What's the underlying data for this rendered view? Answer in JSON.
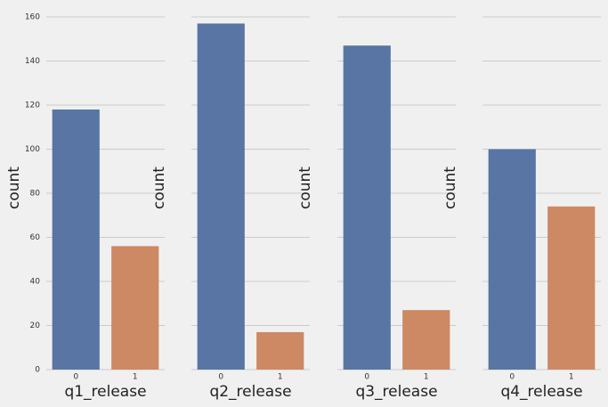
{
  "chart_data": [
    {
      "type": "bar",
      "x_label": "q1_release",
      "y_label": "count",
      "categories": [
        "0",
        "1"
      ],
      "values": [
        118,
        56
      ],
      "colors": [
        "#5875a4",
        "#cc8963"
      ],
      "ylim": [
        0,
        164.85
      ],
      "yticks": [
        0,
        20,
        40,
        60,
        80,
        100,
        120,
        140,
        160
      ],
      "show_ytick_labels": true,
      "grid": true
    },
    {
      "type": "bar",
      "x_label": "q2_release",
      "y_label": "count",
      "categories": [
        "0",
        "1"
      ],
      "values": [
        157,
        17
      ],
      "colors": [
        "#5875a4",
        "#cc8963"
      ],
      "ylim": [
        0,
        164.85
      ],
      "yticks": [
        0,
        20,
        40,
        60,
        80,
        100,
        120,
        140,
        160
      ],
      "show_ytick_labels": false,
      "grid": true
    },
    {
      "type": "bar",
      "x_label": "q3_release",
      "y_label": "count",
      "categories": [
        "0",
        "1"
      ],
      "values": [
        147,
        27
      ],
      "colors": [
        "#5875a4",
        "#cc8963"
      ],
      "ylim": [
        0,
        164.85
      ],
      "yticks": [
        0,
        20,
        40,
        60,
        80,
        100,
        120,
        140,
        160
      ],
      "show_ytick_labels": false,
      "grid": true
    },
    {
      "type": "bar",
      "x_label": "q4_release",
      "y_label": "count",
      "categories": [
        "0",
        "1"
      ],
      "values": [
        100,
        74
      ],
      "colors": [
        "#5875a4",
        "#cc8963"
      ],
      "ylim": [
        0,
        164.85
      ],
      "yticks": [
        0,
        20,
        40,
        60,
        80,
        100,
        120,
        140,
        160
      ],
      "show_ytick_labels": false,
      "grid": true
    }
  ]
}
